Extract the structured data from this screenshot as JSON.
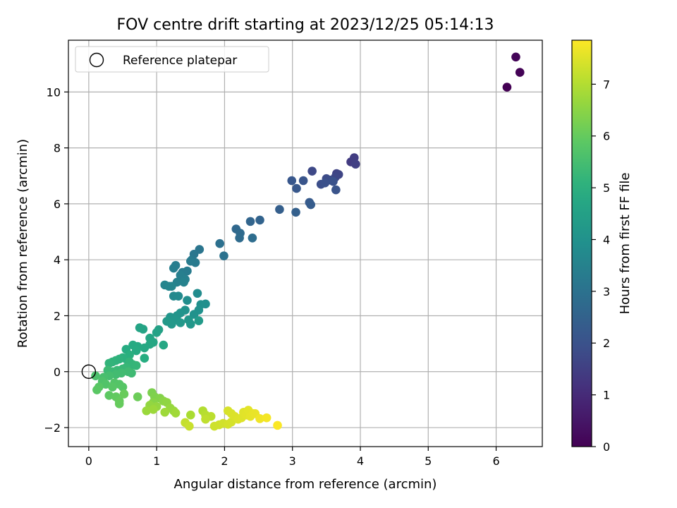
{
  "chart_data": {
    "type": "scatter",
    "title": "FOV centre drift starting at 2023/12/25 05:14:13",
    "xlabel": "Angular distance from reference (arcmin)",
    "ylabel": "Rotation from reference (arcmin)",
    "xlim": [
      -0.3,
      6.68
    ],
    "ylim": [
      -2.68,
      11.85
    ],
    "x_ticks": [
      0,
      1,
      2,
      3,
      4,
      5,
      6
    ],
    "y_ticks": [
      -2,
      0,
      2,
      4,
      6,
      8,
      10
    ],
    "grid": true,
    "legend": {
      "placement": "upper-left",
      "entries": [
        "Reference platepar"
      ]
    },
    "reference_point": {
      "x": 0,
      "y": 0
    },
    "colorbar": {
      "label": "Hours from first FF file",
      "range": [
        0,
        7.85
      ],
      "ticks": [
        0,
        1,
        2,
        3,
        4,
        5,
        6,
        7
      ],
      "colormap": "viridis"
    },
    "points": [
      [
        6.16,
        10.17,
        0.0
      ],
      [
        6.35,
        10.7,
        0.05
      ],
      [
        6.29,
        11.25,
        0.1
      ],
      [
        3.86,
        7.5,
        1.4
      ],
      [
        3.91,
        7.65,
        1.45
      ],
      [
        3.93,
        7.42,
        1.5
      ],
      [
        3.65,
        7.08,
        1.6
      ],
      [
        3.68,
        7.05,
        1.65
      ],
      [
        3.63,
        6.95,
        1.7
      ],
      [
        3.5,
        6.9,
        1.8
      ],
      [
        3.55,
        6.85,
        1.85
      ],
      [
        3.42,
        6.7,
        1.9
      ],
      [
        3.48,
        6.75,
        1.95
      ],
      [
        3.6,
        6.8,
        2.0
      ],
      [
        3.64,
        6.5,
        2.05
      ],
      [
        3.29,
        7.17,
        1.75
      ],
      [
        3.16,
        6.83,
        2.1
      ],
      [
        2.99,
        6.83,
        2.15
      ],
      [
        3.06,
        6.55,
        2.2
      ],
      [
        3.25,
        6.05,
        2.25
      ],
      [
        3.27,
        5.97,
        2.3
      ],
      [
        2.81,
        5.8,
        2.4
      ],
      [
        3.05,
        5.7,
        2.45
      ],
      [
        2.52,
        5.42,
        2.55
      ],
      [
        2.38,
        5.37,
        2.6
      ],
      [
        2.17,
        5.1,
        2.7
      ],
      [
        2.23,
        4.95,
        2.75
      ],
      [
        2.22,
        4.78,
        2.8
      ],
      [
        2.41,
        4.78,
        2.85
      ],
      [
        1.93,
        4.58,
        2.95
      ],
      [
        1.99,
        4.14,
        3.0
      ],
      [
        1.63,
        4.37,
        3.1
      ],
      [
        1.55,
        4.2,
        3.15
      ],
      [
        1.52,
        4.0,
        3.2
      ],
      [
        1.57,
        3.9,
        3.25
      ],
      [
        1.5,
        3.95,
        3.28
      ],
      [
        1.45,
        3.6,
        3.3
      ],
      [
        1.38,
        3.55,
        3.32
      ],
      [
        1.28,
        3.8,
        3.35
      ],
      [
        1.25,
        3.7,
        3.38
      ],
      [
        1.35,
        3.45,
        3.4
      ],
      [
        1.42,
        3.3,
        3.45
      ],
      [
        1.3,
        3.2,
        3.48
      ],
      [
        1.4,
        3.2,
        3.5
      ],
      [
        1.12,
        3.1,
        3.55
      ],
      [
        1.18,
        3.05,
        3.58
      ],
      [
        1.22,
        3.05,
        3.6
      ],
      [
        1.25,
        2.7,
        3.7
      ],
      [
        1.32,
        2.7,
        3.75
      ],
      [
        1.6,
        2.8,
        3.8
      ],
      [
        1.45,
        2.55,
        3.85
      ],
      [
        1.72,
        2.42,
        3.9
      ],
      [
        1.65,
        2.4,
        3.92
      ],
      [
        1.62,
        2.2,
        3.95
      ],
      [
        1.55,
        2.05,
        4.0
      ],
      [
        1.42,
        2.2,
        4.02
      ],
      [
        1.35,
        2.1,
        4.05
      ],
      [
        1.3,
        2.0,
        4.08
      ],
      [
        1.2,
        1.95,
        4.1
      ],
      [
        1.27,
        1.85,
        4.12
      ],
      [
        1.47,
        1.85,
        4.15
      ],
      [
        1.5,
        1.7,
        4.18
      ],
      [
        1.35,
        1.75,
        4.2
      ],
      [
        1.22,
        1.7,
        4.22
      ],
      [
        1.15,
        1.8,
        4.25
      ],
      [
        1.62,
        1.82,
        4.28
      ],
      [
        1.03,
        1.5,
        4.5
      ],
      [
        1.0,
        1.4,
        4.55
      ],
      [
        0.8,
        1.52,
        4.6
      ],
      [
        0.75,
        1.57,
        4.62
      ],
      [
        0.9,
        1.2,
        4.65
      ],
      [
        0.95,
        1.05,
        4.7
      ],
      [
        1.1,
        0.95,
        4.72
      ],
      [
        0.9,
        0.98,
        4.75
      ],
      [
        0.82,
        0.85,
        4.78
      ],
      [
        0.72,
        0.9,
        4.8
      ],
      [
        0.65,
        0.95,
        4.85
      ],
      [
        0.7,
        0.75,
        4.88
      ],
      [
        0.55,
        0.8,
        4.9
      ],
      [
        0.82,
        0.48,
        4.95
      ],
      [
        0.6,
        0.6,
        5.0
      ],
      [
        0.55,
        0.45,
        5.02
      ],
      [
        0.5,
        0.5,
        5.05
      ],
      [
        0.45,
        0.45,
        5.08
      ],
      [
        0.4,
        0.4,
        5.1
      ],
      [
        0.35,
        0.35,
        5.12
      ],
      [
        0.3,
        0.3,
        5.15
      ],
      [
        0.6,
        0.35,
        5.18
      ],
      [
        0.65,
        0.25,
        5.2
      ],
      [
        0.7,
        0.22,
        5.22
      ],
      [
        0.55,
        0.15,
        5.25
      ],
      [
        0.5,
        0.1,
        5.28
      ],
      [
        0.42,
        0.05,
        5.3
      ],
      [
        0.35,
        0.0,
        5.33
      ],
      [
        0.28,
        0.05,
        5.35
      ],
      [
        0.63,
        -0.05,
        5.38
      ],
      [
        0.58,
        0.0,
        5.4
      ],
      [
        0.48,
        -0.05,
        5.42
      ],
      [
        0.4,
        -0.1,
        5.45
      ],
      [
        0.3,
        -0.15,
        5.5
      ],
      [
        0.22,
        -0.2,
        5.55
      ],
      [
        0.1,
        -0.15,
        5.6
      ],
      [
        0.2,
        -0.35,
        5.65
      ],
      [
        0.25,
        -0.45,
        5.7
      ],
      [
        0.38,
        -0.4,
        5.72
      ],
      [
        0.45,
        -0.45,
        5.75
      ],
      [
        0.5,
        -0.55,
        5.78
      ],
      [
        0.35,
        -0.55,
        5.8
      ],
      [
        0.15,
        -0.55,
        5.82
      ],
      [
        0.12,
        -0.65,
        5.85
      ],
      [
        0.3,
        -0.85,
        5.9
      ],
      [
        0.4,
        -0.9,
        5.95
      ],
      [
        0.45,
        -1.05,
        6.0
      ],
      [
        0.45,
        -1.15,
        6.02
      ],
      [
        0.52,
        -0.8,
        6.05
      ],
      [
        0.72,
        -0.9,
        6.1
      ],
      [
        0.93,
        -0.75,
        6.3
      ],
      [
        0.97,
        -0.9,
        6.35
      ],
      [
        1.05,
        -0.95,
        6.4
      ],
      [
        0.95,
        -1.1,
        6.45
      ],
      [
        1.1,
        -1.05,
        6.5
      ],
      [
        1.15,
        -1.1,
        6.55
      ],
      [
        0.9,
        -1.2,
        6.6
      ],
      [
        1.0,
        -1.25,
        6.62
      ],
      [
        1.2,
        -1.3,
        6.65
      ],
      [
        1.25,
        -1.4,
        6.68
      ],
      [
        0.85,
        -1.4,
        6.7
      ],
      [
        0.95,
        -1.35,
        6.72
      ],
      [
        1.12,
        -1.45,
        6.75
      ],
      [
        1.28,
        -1.48,
        6.78
      ],
      [
        1.5,
        -1.55,
        6.9
      ],
      [
        1.68,
        -1.4,
        7.0
      ],
      [
        1.72,
        -1.55,
        7.05
      ],
      [
        1.8,
        -1.6,
        7.1
      ],
      [
        1.72,
        -1.7,
        7.15
      ],
      [
        1.42,
        -1.82,
        7.2
      ],
      [
        1.48,
        -1.95,
        7.25
      ],
      [
        1.85,
        -1.95,
        7.3
      ],
      [
        1.92,
        -1.9,
        7.32
      ],
      [
        1.98,
        -1.85,
        7.35
      ],
      [
        2.05,
        -1.88,
        7.38
      ],
      [
        2.1,
        -1.8,
        7.4
      ],
      [
        2.05,
        -1.4,
        7.42
      ],
      [
        2.1,
        -1.5,
        7.44
      ],
      [
        2.15,
        -1.6,
        7.46
      ],
      [
        2.2,
        -1.7,
        7.48
      ],
      [
        2.25,
        -1.65,
        7.5
      ],
      [
        2.28,
        -1.45,
        7.52
      ],
      [
        2.32,
        -1.55,
        7.54
      ],
      [
        2.35,
        -1.38,
        7.56
      ],
      [
        2.38,
        -1.6,
        7.58
      ],
      [
        2.42,
        -1.5,
        7.6
      ],
      [
        2.45,
        -1.5,
        7.62
      ],
      [
        2.52,
        -1.68,
        7.7
      ],
      [
        2.62,
        -1.65,
        7.75
      ],
      [
        2.78,
        -1.92,
        7.82
      ]
    ]
  }
}
